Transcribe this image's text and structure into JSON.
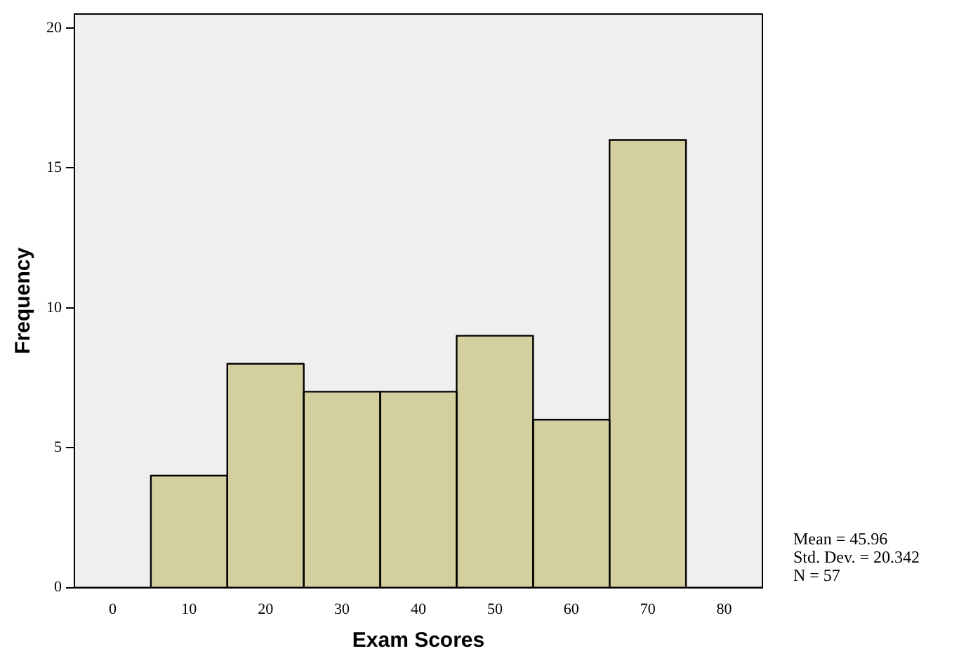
{
  "chart_data": {
    "type": "histogram",
    "xlabel": "Exam Scores",
    "ylabel": "Frequency",
    "bins": [
      5,
      15,
      25,
      35,
      45,
      55,
      65,
      75
    ],
    "values": [
      4,
      8,
      7,
      7,
      9,
      6,
      16
    ],
    "color": "#d4cf9e",
    "xlim": [
      -5,
      85
    ],
    "xticks": [
      0,
      10,
      20,
      30,
      40,
      50,
      60,
      70,
      80
    ],
    "ylim": [
      0,
      20.5
    ],
    "yticks": [
      0,
      5,
      10,
      15,
      20
    ],
    "grid": false,
    "legend": false,
    "annotations": [
      "Mean = 45.96",
      "Std. Dev. = 20.342",
      "N = 57"
    ]
  }
}
